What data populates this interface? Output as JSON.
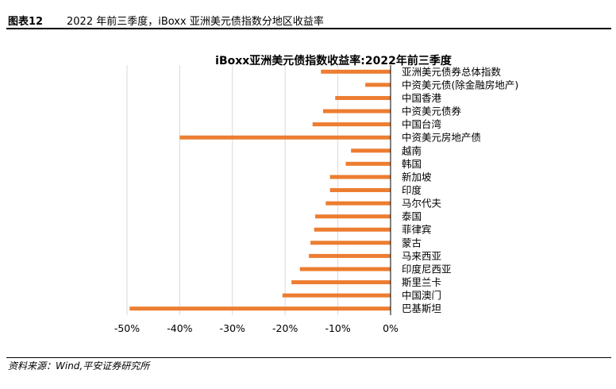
{
  "header": {
    "figure_number": "图表12",
    "figure_title": "2022 年前三季度，iBoxx 亚洲美元债指数分地区收益率"
  },
  "footer": {
    "source": "资料来源：Wind,平安证券研究所"
  },
  "colors": {
    "bar": "#ED7D31",
    "grid": "#D9D9D9",
    "axis": "#000000"
  },
  "chart_data": {
    "type": "bar",
    "orientation": "horizontal",
    "title": "iBoxx亚洲美元债指数收益率:2022年前三季度",
    "categories": [
      "亚洲美元债券总体指数",
      "中资美元债(除金融房地产)",
      "中国香港",
      "中资美元债券",
      "中国台湾",
      "中资美元房地产债",
      "越南",
      "韩国",
      "新加坡",
      "印度",
      "马尔代夫",
      "泰国",
      "菲律宾",
      "蒙古",
      "马来西亚",
      "印度尼西亚",
      "斯里兰卡",
      "中国澳门",
      "巴基斯坦"
    ],
    "values": [
      -13.2,
      -4.8,
      -10.5,
      -12.8,
      -14.8,
      -40.0,
      -7.5,
      -8.5,
      -11.5,
      -11.5,
      -12.3,
      -14.3,
      -14.5,
      -15.2,
      -15.5,
      -17.2,
      -18.8,
      -20.5,
      -49.5
    ],
    "xlim": [
      -50,
      0
    ],
    "xticks": [
      -50,
      -40,
      -30,
      -20,
      -10,
      0
    ],
    "xtick_labels": [
      "-50%",
      "-40%",
      "-30%",
      "-20%",
      "-10%",
      "0%"
    ],
    "grid": true,
    "legend": "none"
  }
}
